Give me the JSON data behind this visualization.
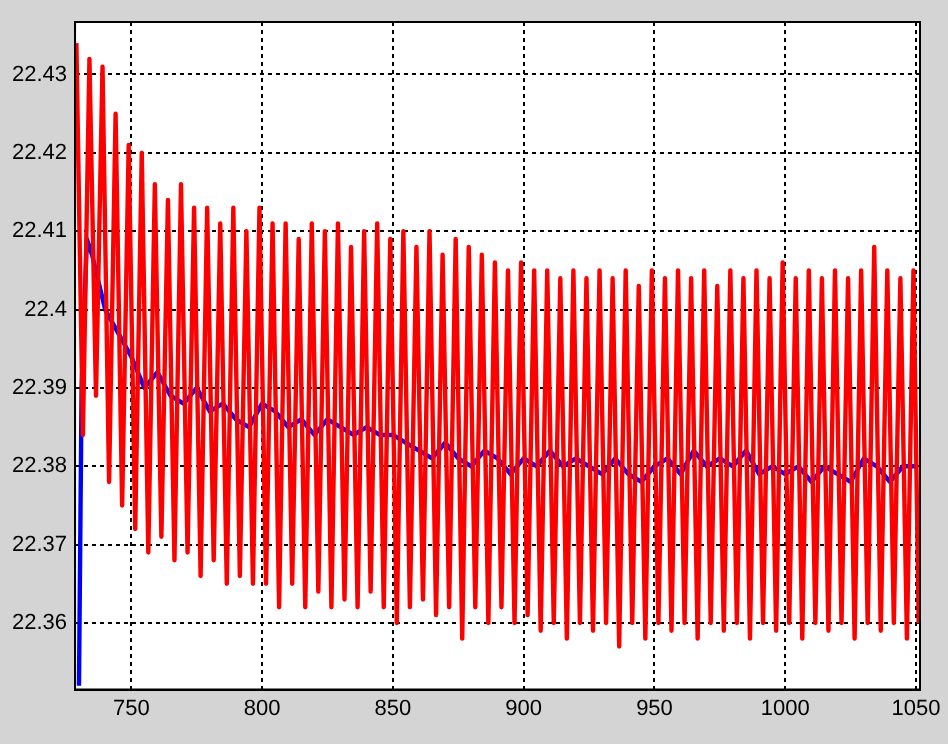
{
  "chart_data": {
    "type": "line",
    "xlim": [
      728.5,
      1051.5
    ],
    "ylim": [
      22.3515,
      22.4367
    ],
    "xticks": [
      750,
      800,
      850,
      900,
      950,
      1000,
      1050
    ],
    "yticks": [
      22.36,
      22.37,
      22.38,
      22.39,
      22.4,
      22.41,
      22.42,
      22.43
    ],
    "grid": true,
    "legend": false,
    "marker": "none",
    "line_style": "solid",
    "series": [
      {
        "color": "#ff0000",
        "x": [
          729,
          731.5,
          734,
          736.5,
          739,
          741.5,
          744,
          746.5,
          749,
          751.5,
          754,
          756.5,
          759,
          761.5,
          764,
          766.5,
          769,
          771.5,
          774,
          776.5,
          779,
          781.5,
          784,
          786.5,
          789,
          791.5,
          794,
          796.5,
          799,
          801.5,
          804,
          806.5,
          809,
          811.5,
          814,
          816.5,
          819,
          821.5,
          824,
          826.5,
          829,
          831.5,
          834,
          836.5,
          839,
          841.5,
          844,
          846.5,
          849,
          851.5,
          854,
          856.5,
          859,
          861.5,
          864,
          866.5,
          869,
          871.5,
          874,
          876.5,
          879,
          881.5,
          884,
          886.5,
          889,
          891.5,
          894,
          896.5,
          899,
          901.5,
          904,
          906.5,
          909,
          911.5,
          914,
          916.5,
          919,
          921.5,
          924,
          926.5,
          929,
          931.5,
          934,
          936.5,
          939,
          941.5,
          944,
          946.5,
          949,
          951.5,
          954,
          956.5,
          959,
          961.5,
          964,
          966.5,
          969,
          971.5,
          974,
          976.5,
          979,
          981.5,
          984,
          986.5,
          989,
          991.5,
          994,
          996.5,
          999,
          1001.5,
          1004,
          1006.5,
          1009,
          1011.5,
          1014,
          1016.5,
          1019,
          1021.5,
          1024,
          1026.5,
          1029,
          1031.5,
          1034,
          1036.5,
          1039,
          1041.5,
          1044,
          1046.5,
          1049,
          1051
        ],
        "values": [
          22.434,
          22.384,
          22.432,
          22.389,
          22.431,
          22.378,
          22.425,
          22.375,
          22.421,
          22.372,
          22.42,
          22.369,
          22.416,
          22.371,
          22.414,
          22.368,
          22.416,
          22.369,
          22.413,
          22.366,
          22.413,
          22.368,
          22.411,
          22.365,
          22.413,
          22.366,
          22.41,
          22.365,
          22.413,
          22.365,
          22.411,
          22.362,
          22.411,
          22.365,
          22.409,
          22.362,
          22.411,
          22.364,
          22.41,
          22.362,
          22.411,
          22.363,
          22.408,
          22.362,
          22.41,
          22.364,
          22.411,
          22.362,
          22.409,
          22.36,
          22.41,
          22.362,
          22.408,
          22.363,
          22.41,
          22.361,
          22.407,
          22.362,
          22.409,
          22.358,
          22.408,
          22.362,
          22.407,
          22.36,
          22.406,
          22.362,
          22.405,
          22.36,
          22.406,
          22.361,
          22.405,
          22.359,
          22.405,
          22.36,
          22.404,
          22.358,
          22.405,
          22.36,
          22.404,
          22.359,
          22.405,
          22.36,
          22.404,
          22.357,
          22.405,
          22.36,
          22.403,
          22.358,
          22.405,
          22.36,
          22.404,
          22.359,
          22.405,
          22.36,
          22.404,
          22.358,
          22.405,
          22.36,
          22.403,
          22.359,
          22.405,
          22.36,
          22.404,
          22.358,
          22.405,
          22.36,
          22.404,
          22.359,
          22.406,
          22.36,
          22.404,
          22.358,
          22.405,
          22.36,
          22.404,
          22.359,
          22.405,
          22.36,
          22.404,
          22.358,
          22.405,
          22.36,
          22.408,
          22.359,
          22.405,
          22.36,
          22.404,
          22.358,
          22.405,
          22.36
        ]
      },
      {
        "color": "#0000ff",
        "x": [
          730,
          731,
          733,
          735,
          740,
          745,
          750,
          755,
          760,
          765,
          770,
          775,
          780,
          785,
          790,
          795,
          800,
          805,
          810,
          815,
          820,
          825,
          830,
          835,
          840,
          845,
          850,
          855,
          860,
          865,
          870,
          875,
          880,
          885,
          890,
          895,
          900,
          905,
          910,
          915,
          920,
          925,
          930,
          935,
          940,
          945,
          950,
          955,
          960,
          965,
          970,
          975,
          980,
          985,
          990,
          995,
          1000,
          1005,
          1010,
          1015,
          1020,
          1025,
          1030,
          1035,
          1040,
          1045,
          1050
        ],
        "values": [
          22.352,
          22.39,
          22.409,
          22.407,
          22.4,
          22.397,
          22.394,
          22.39,
          22.392,
          22.389,
          22.388,
          22.39,
          22.387,
          22.388,
          22.386,
          22.385,
          22.388,
          22.387,
          22.385,
          22.386,
          22.384,
          22.386,
          22.385,
          22.384,
          22.385,
          22.384,
          22.384,
          22.383,
          22.382,
          22.381,
          22.383,
          22.381,
          22.38,
          22.382,
          22.381,
          22.379,
          22.381,
          22.38,
          22.382,
          22.38,
          22.381,
          22.38,
          22.379,
          22.381,
          22.379,
          22.378,
          22.38,
          22.381,
          22.379,
          22.382,
          22.38,
          22.381,
          22.38,
          22.382,
          22.379,
          22.38,
          22.379,
          22.38,
          22.378,
          22.38,
          22.379,
          22.378,
          22.381,
          22.38,
          22.378,
          22.38,
          22.38
        ]
      }
    ]
  }
}
